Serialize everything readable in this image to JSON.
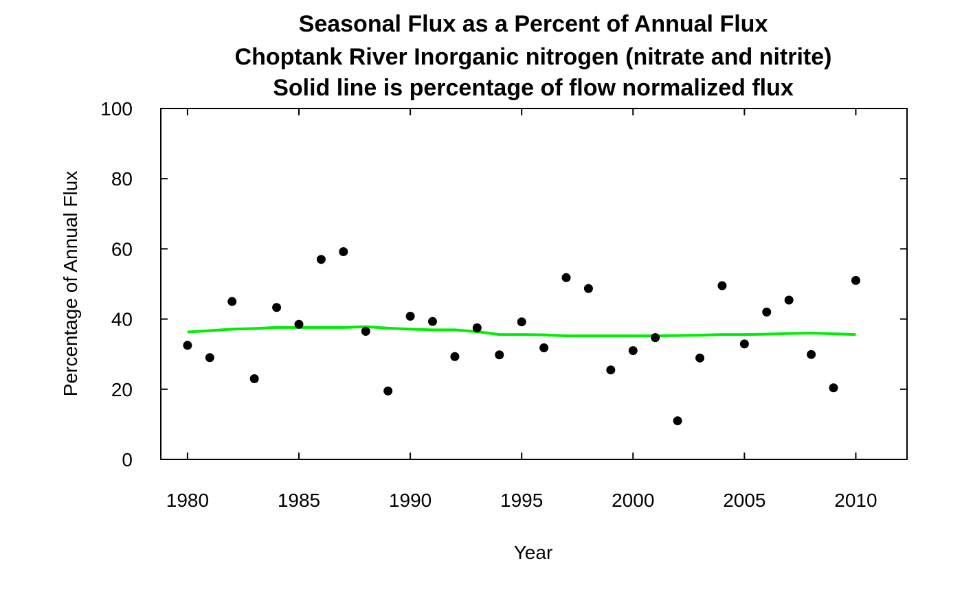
{
  "chart_data": {
    "type": "scatter",
    "title_lines": [
      "Seasonal Flux as a Percent of Annual Flux",
      "Choptank River Inorganic nitrogen (nitrate and nitrite)",
      "Solid line is percentage of flow normalized flux"
    ],
    "xlabel": "Year",
    "ylabel": "Percentage of Annual Flux",
    "xlim": [
      1978.8,
      1980.0
    ],
    "xlim_full": [
      1978.8,
      2012.3
    ],
    "ylim": [
      0,
      100
    ],
    "x_ticks": [
      1980,
      1985,
      1990,
      1995,
      2000,
      2005,
      2010
    ],
    "y_ticks": [
      0,
      20,
      40,
      60,
      80,
      100
    ],
    "grid": false,
    "legend": "none",
    "colors": {
      "points": "#000000",
      "line": "#00ee00",
      "axes": "#000000"
    },
    "series": [
      {
        "kind": "points",
        "x": [
          1980,
          1981,
          1982,
          1983,
          1984,
          1985,
          1986,
          1987,
          1988,
          1989,
          1990,
          1991,
          1992,
          1993,
          1994,
          1995,
          1996,
          1997,
          1998,
          1999,
          2000,
          2001,
          2002,
          2003,
          2004,
          2005,
          2006,
          2007,
          2008,
          2009,
          2010
        ],
        "y": [
          32.5,
          29,
          45,
          23,
          43.3,
          38.5,
          57,
          59.2,
          36.5,
          19.5,
          40.8,
          39.3,
          29.3,
          37.5,
          29.8,
          39.2,
          31.8,
          51.8,
          48.7,
          25.5,
          31,
          34.7,
          11,
          28.9,
          49.5,
          32.9,
          42,
          45.4,
          29.9,
          20.4,
          51
        ]
      },
      {
        "kind": "line",
        "x": [
          1980,
          1981,
          1982,
          1983,
          1984,
          1985,
          1986,
          1987,
          1988,
          1989,
          1990,
          1991,
          1992,
          1993,
          1994,
          1995,
          1996,
          1997,
          1998,
          1999,
          2000,
          2001,
          2002,
          2003,
          2004,
          2005,
          2006,
          2007,
          2008,
          2009,
          2010
        ],
        "y": [
          36.3,
          36.7,
          37.1,
          37.3,
          37.6,
          37.6,
          37.6,
          37.6,
          37.8,
          37.4,
          37.1,
          36.9,
          36.9,
          36.4,
          35.6,
          35.6,
          35.5,
          35.2,
          35.2,
          35.2,
          35.2,
          35.2,
          35.3,
          35.4,
          35.6,
          35.6,
          35.7,
          35.9,
          36.0,
          35.8,
          35.6
        ]
      }
    ]
  }
}
